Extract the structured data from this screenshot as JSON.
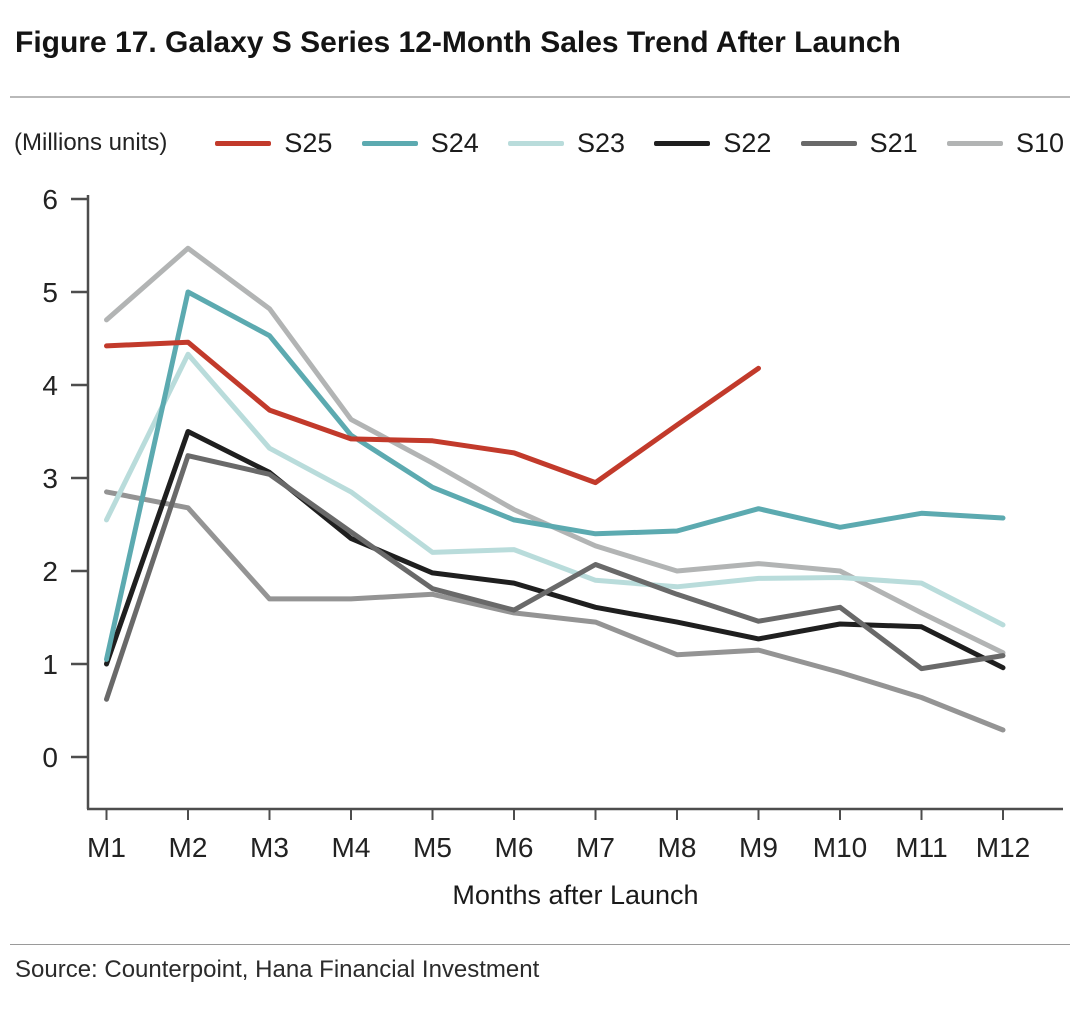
{
  "title": "Figure 17. Galaxy S Series 12-Month Sales Trend After Launch",
  "units_label": "(Millions units)",
  "source": "Source: Counterpoint, Hana Financial Investment",
  "chart_data": {
    "type": "line",
    "x": [
      "M1",
      "M2",
      "M3",
      "M4",
      "M5",
      "M6",
      "M7",
      "M8",
      "M9",
      "M10",
      "M11",
      "M12"
    ],
    "xlabel": "Months after Launch",
    "ylabel": "",
    "ylim": [
      0,
      6
    ],
    "yticks": [
      0,
      1,
      2,
      3,
      4,
      5,
      6
    ],
    "grid": false,
    "legend_position": "top",
    "series": [
      {
        "name": "S25",
        "color": "#c23a2b",
        "in_legend": true,
        "z": 7,
        "values": [
          4.42,
          4.46,
          3.73,
          3.42,
          3.4,
          3.27,
          2.95,
          3.57,
          4.18,
          null,
          null,
          null
        ]
      },
      {
        "name": "S24",
        "color": "#5caab0",
        "in_legend": true,
        "z": 6,
        "values": [
          1.05,
          5.0,
          4.53,
          3.46,
          2.9,
          2.55,
          2.4,
          2.43,
          2.67,
          2.47,
          2.62,
          2.57
        ]
      },
      {
        "name": "S23",
        "color": "#b9dcdb",
        "in_legend": true,
        "z": 3,
        "values": [
          2.55,
          4.33,
          3.32,
          2.85,
          2.2,
          2.23,
          1.9,
          1.83,
          1.92,
          1.93,
          1.87,
          1.42
        ]
      },
      {
        "name": "S22",
        "color": "#1f1f1f",
        "in_legend": true,
        "z": 4,
        "values": [
          1.0,
          3.5,
          3.06,
          2.35,
          1.98,
          1.87,
          1.61,
          1.45,
          1.27,
          1.43,
          1.4,
          0.96
        ]
      },
      {
        "name": "S21",
        "color": "#696969",
        "in_legend": true,
        "z": 5,
        "values": [
          0.62,
          3.24,
          3.04,
          2.42,
          1.81,
          1.58,
          2.07,
          1.75,
          1.46,
          1.61,
          0.95,
          1.09
        ]
      },
      {
        "name": "S10",
        "color": "#b2b4b4",
        "in_legend": true,
        "z": 2,
        "values": [
          4.7,
          5.47,
          4.82,
          3.63,
          3.16,
          2.66,
          2.27,
          2.0,
          2.08,
          2.0,
          1.55,
          1.12
        ]
      },
      {
        "name": "",
        "color": "#949494",
        "in_legend": false,
        "z": 1,
        "values": [
          2.85,
          2.68,
          1.7,
          1.7,
          1.75,
          1.55,
          1.45,
          1.1,
          1.15,
          0.91,
          0.64,
          0.29
        ]
      }
    ]
  }
}
